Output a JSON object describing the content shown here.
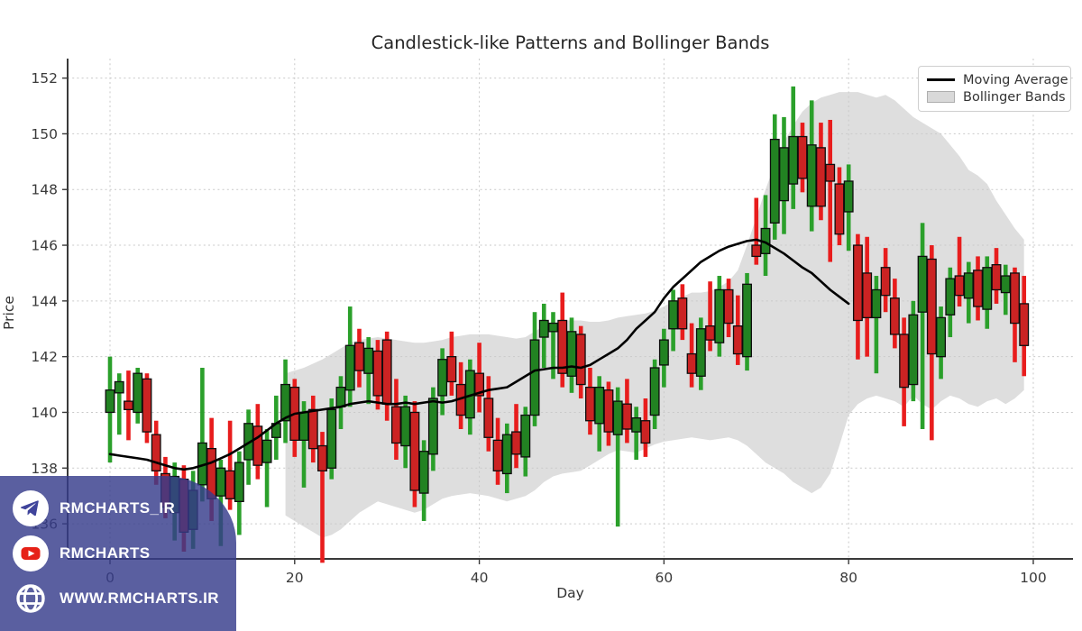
{
  "chart_data": {
    "type": "candlestick",
    "title": "Candlestick-like Patterns and Bollinger Bands",
    "xlabel": "Day",
    "ylabel": "Price",
    "xlim": [
      -4.59,
      104.3
    ],
    "ylim": [
      134.74,
      152.7
    ],
    "x_ticks": [
      0,
      20,
      40,
      60,
      80,
      100
    ],
    "y_ticks": [
      136,
      138,
      140,
      142,
      144,
      146,
      148,
      150,
      152
    ],
    "grid": true,
    "legend": {
      "position": "upper right",
      "items": [
        "Moving Average",
        "Bollinger Bands"
      ]
    },
    "colors": {
      "up_wick": "#2ba02b",
      "up_body": "#228222",
      "down_wick": "#e81d1d",
      "down_body": "#cb2323",
      "ma_line": "#000000",
      "band_fill": "#dadada",
      "grid": "#c9c9c9"
    },
    "candles_ohlc": [
      [
        140.0,
        142.0,
        138.2,
        140.8
      ],
      [
        140.7,
        141.4,
        139.2,
        141.1
      ],
      [
        140.4,
        141.5,
        139.0,
        140.1
      ],
      [
        140.0,
        141.6,
        139.6,
        141.4
      ],
      [
        141.2,
        141.4,
        138.9,
        139.3
      ],
      [
        139.2,
        139.7,
        137.4,
        137.9
      ],
      [
        137.8,
        138.4,
        136.2,
        136.6
      ],
      [
        136.4,
        138.2,
        135.4,
        137.7
      ],
      [
        137.6,
        138.1,
        135.0,
        135.7
      ],
      [
        135.8,
        137.9,
        135.1,
        137.2
      ],
      [
        137.4,
        141.6,
        136.8,
        138.9
      ],
      [
        138.7,
        139.8,
        136.1,
        136.9
      ],
      [
        137.0,
        138.3,
        135.2,
        138.0
      ],
      [
        137.9,
        139.7,
        136.5,
        136.9
      ],
      [
        136.8,
        138.6,
        135.6,
        138.2
      ],
      [
        138.3,
        140.1,
        137.4,
        139.6
      ],
      [
        139.5,
        140.3,
        137.6,
        138.1
      ],
      [
        138.2,
        139.4,
        136.6,
        139.0
      ],
      [
        139.1,
        140.6,
        138.3,
        139.6
      ],
      [
        139.7,
        141.9,
        138.9,
        141.0
      ],
      [
        140.9,
        141.2,
        138.4,
        139.0
      ],
      [
        139.0,
        140.4,
        137.3,
        140.0
      ],
      [
        140.1,
        140.6,
        138.2,
        138.7
      ],
      [
        138.8,
        139.3,
        134.6,
        137.9
      ],
      [
        138.0,
        140.5,
        137.6,
        140.1
      ],
      [
        140.2,
        141.3,
        139.4,
        140.9
      ],
      [
        140.8,
        143.8,
        140.2,
        142.4
      ],
      [
        142.5,
        143.0,
        140.9,
        141.5
      ],
      [
        141.4,
        142.7,
        140.3,
        142.3
      ],
      [
        142.2,
        142.6,
        140.1,
        140.6
      ],
      [
        142.6,
        142.9,
        139.7,
        140.3
      ],
      [
        140.2,
        141.2,
        138.3,
        138.9
      ],
      [
        138.8,
        140.6,
        138.0,
        140.2
      ],
      [
        140.0,
        140.4,
        136.6,
        137.2
      ],
      [
        137.1,
        139.0,
        136.1,
        138.6
      ],
      [
        138.5,
        140.9,
        137.9,
        140.5
      ],
      [
        140.6,
        142.3,
        139.9,
        141.9
      ],
      [
        142.0,
        142.9,
        140.6,
        141.1
      ],
      [
        141.0,
        141.8,
        139.4,
        139.9
      ],
      [
        139.8,
        141.9,
        139.2,
        141.5
      ],
      [
        141.4,
        142.5,
        140.0,
        140.6
      ],
      [
        140.5,
        141.3,
        138.6,
        139.1
      ],
      [
        139.0,
        139.8,
        137.4,
        137.9
      ],
      [
        137.8,
        139.6,
        137.1,
        139.2
      ],
      [
        139.3,
        140.3,
        138.0,
        138.5
      ],
      [
        138.4,
        140.2,
        137.7,
        139.9
      ],
      [
        139.9,
        143.6,
        139.5,
        142.6
      ],
      [
        142.7,
        143.9,
        141.6,
        143.3
      ],
      [
        142.9,
        143.6,
        141.2,
        143.2
      ],
      [
        143.3,
        144.3,
        140.9,
        141.4
      ],
      [
        141.3,
        143.4,
        140.7,
        142.9
      ],
      [
        142.8,
        143.1,
        140.5,
        141.0
      ],
      [
        140.9,
        141.6,
        139.2,
        139.7
      ],
      [
        139.6,
        141.3,
        138.6,
        140.9
      ],
      [
        140.8,
        141.1,
        138.8,
        139.3
      ],
      [
        139.2,
        140.9,
        135.9,
        140.4
      ],
      [
        140.3,
        141.2,
        138.9,
        139.4
      ],
      [
        139.3,
        140.2,
        138.3,
        139.8
      ],
      [
        139.7,
        140.5,
        138.4,
        138.9
      ],
      [
        139.9,
        141.9,
        139.4,
        141.6
      ],
      [
        141.7,
        143.0,
        140.9,
        142.6
      ],
      [
        143.0,
        144.4,
        142.2,
        144.0
      ],
      [
        144.1,
        144.6,
        142.6,
        143.0
      ],
      [
        142.1,
        143.2,
        140.9,
        141.4
      ],
      [
        141.3,
        143.4,
        140.8,
        143.0
      ],
      [
        143.1,
        144.7,
        142.2,
        142.6
      ],
      [
        142.5,
        144.9,
        142.0,
        144.4
      ],
      [
        144.4,
        144.8,
        142.7,
        143.2
      ],
      [
        143.1,
        144.2,
        141.7,
        142.1
      ],
      [
        142.0,
        145.0,
        141.5,
        144.6
      ],
      [
        146.0,
        147.7,
        145.3,
        145.6
      ],
      [
        145.7,
        147.8,
        144.9,
        146.6
      ],
      [
        146.8,
        150.7,
        146.2,
        149.8
      ],
      [
        147.6,
        150.6,
        146.4,
        149.5
      ],
      [
        148.2,
        151.7,
        147.3,
        149.9
      ],
      [
        149.9,
        150.4,
        147.9,
        148.4
      ],
      [
        147.4,
        151.2,
        146.5,
        149.6
      ],
      [
        149.5,
        150.4,
        146.9,
        147.4
      ],
      [
        148.9,
        150.5,
        145.4,
        148.3
      ],
      [
        148.2,
        148.8,
        146.0,
        146.4
      ],
      [
        147.2,
        148.9,
        145.8,
        148.3
      ],
      [
        146.0,
        146.4,
        141.9,
        143.3
      ],
      [
        145.0,
        146.3,
        142.0,
        143.4
      ],
      [
        143.4,
        144.9,
        141.4,
        144.4
      ],
      [
        145.2,
        145.9,
        143.6,
        144.2
      ],
      [
        144.1,
        144.8,
        142.3,
        142.8
      ],
      [
        142.8,
        143.4,
        139.5,
        140.9
      ],
      [
        141.0,
        144.0,
        140.4,
        143.5
      ],
      [
        143.6,
        146.8,
        139.4,
        145.6
      ],
      [
        145.5,
        146.0,
        139.0,
        142.1
      ],
      [
        142.0,
        143.8,
        141.2,
        143.4
      ],
      [
        143.5,
        145.2,
        142.7,
        144.8
      ],
      [
        144.9,
        146.3,
        143.8,
        144.2
      ],
      [
        144.1,
        145.4,
        143.2,
        145.0
      ],
      [
        145.1,
        145.6,
        143.3,
        143.8
      ],
      [
        143.7,
        145.6,
        143.0,
        145.2
      ],
      [
        145.3,
        145.9,
        143.9,
        144.4
      ],
      [
        144.3,
        145.3,
        143.5,
        144.9
      ],
      [
        145.0,
        145.2,
        141.8,
        143.2
      ],
      [
        143.9,
        144.9,
        141.3,
        142.4
      ]
    ],
    "moving_average": {
      "start_day": 0,
      "values": [
        138.5,
        138.45,
        138.4,
        138.35,
        138.3,
        138.2,
        138.1,
        138.0,
        137.95,
        138.0,
        138.1,
        138.2,
        138.35,
        138.5,
        138.7,
        138.9,
        139.1,
        139.35,
        139.6,
        139.8,
        139.95,
        140.0,
        140.05,
        140.1,
        140.15,
        140.2,
        140.3,
        140.35,
        140.4,
        140.35,
        140.3,
        140.3,
        140.35,
        140.3,
        140.35,
        140.4,
        140.35,
        140.4,
        140.5,
        140.6,
        140.7,
        140.8,
        140.85,
        140.9,
        141.1,
        141.3,
        141.5,
        141.55,
        141.6,
        141.6,
        141.65,
        141.6,
        141.7,
        141.9,
        142.1,
        142.3,
        142.6,
        143.0,
        143.3,
        143.6,
        144.1,
        144.5,
        144.8,
        145.1,
        145.4,
        145.6,
        145.8,
        145.95,
        146.05,
        146.15,
        146.2,
        146.1,
        145.9,
        145.7,
        145.45,
        145.2,
        145.0,
        144.7,
        144.4,
        144.15,
        143.9
      ]
    },
    "bollinger_bands": {
      "start_day": 19,
      "upper": [
        141.4,
        141.5,
        141.6,
        141.75,
        141.9,
        142.1,
        142.3,
        142.5,
        142.6,
        142.65,
        142.7,
        142.65,
        142.6,
        142.55,
        142.5,
        142.5,
        142.55,
        142.6,
        142.7,
        142.75,
        142.8,
        142.8,
        142.8,
        142.75,
        142.7,
        142.65,
        142.7,
        142.9,
        143.1,
        143.2,
        143.3,
        143.3,
        143.3,
        143.25,
        143.25,
        143.3,
        143.4,
        143.45,
        143.5,
        143.55,
        143.65,
        143.8,
        144.0,
        144.15,
        144.3,
        144.3,
        144.35,
        144.5,
        144.7,
        145.1,
        146.0,
        147.0,
        148.0,
        148.9,
        149.7,
        150.3,
        150.8,
        151.1,
        151.3,
        151.4,
        151.5,
        151.5,
        151.5,
        151.4,
        151.3,
        151.4,
        151.2,
        150.9,
        150.6,
        150.4,
        150.2,
        150.0,
        149.6,
        149.2,
        148.7,
        148.5,
        148.2,
        147.6,
        147.1,
        146.6,
        146.2
      ],
      "lower": [
        136.3,
        136.1,
        135.9,
        135.7,
        135.5,
        135.6,
        135.8,
        136.1,
        136.4,
        136.6,
        136.8,
        136.7,
        136.6,
        136.5,
        136.4,
        136.5,
        136.7,
        136.9,
        137.0,
        137.05,
        137.1,
        137.05,
        137.0,
        136.9,
        136.8,
        136.9,
        137.0,
        137.2,
        137.5,
        137.7,
        137.8,
        137.85,
        137.9,
        138.1,
        138.3,
        138.5,
        138.65,
        138.6,
        138.55,
        138.7,
        138.85,
        138.95,
        139.0,
        139.05,
        139.1,
        139.05,
        139.0,
        139.05,
        139.1,
        139.0,
        138.8,
        138.5,
        138.2,
        138.0,
        137.8,
        137.5,
        137.3,
        137.1,
        137.3,
        137.8,
        138.8,
        139.9,
        140.3,
        140.5,
        140.6,
        140.5,
        140.4,
        140.2,
        140.6,
        140.3,
        140.1,
        140.4,
        140.6,
        140.5,
        140.3,
        140.2,
        140.4,
        140.5,
        140.3,
        140.5,
        140.8
      ]
    }
  },
  "watermark": {
    "banner_color": "rgba(54,60,139,0.82)",
    "rows": [
      {
        "icon": "telegram-icon",
        "label": "RMCHARTS_IR"
      },
      {
        "icon": "youtube-icon",
        "label": "RMCHARTS"
      },
      {
        "icon": "globe-icon",
        "label": "WWW.RMCHARTS.IR"
      }
    ]
  }
}
